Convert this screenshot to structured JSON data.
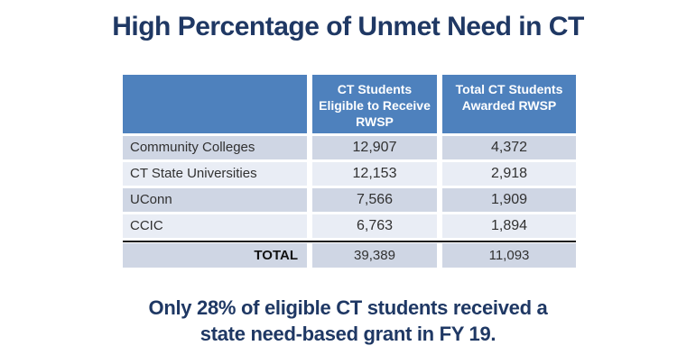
{
  "title": "High Percentage of Unmet Need in CT",
  "table": {
    "header": {
      "col1": "",
      "col2": "CT Students\nEligible to Receive\nRWSP",
      "col3": "Total CT Students\nAwarded RWSP"
    },
    "rows": [
      {
        "label": "Community Colleges",
        "eligible": "12,907",
        "awarded": "4,372"
      },
      {
        "label": "CT State Universities",
        "eligible": "12,153",
        "awarded": "2,918"
      },
      {
        "label": "UConn",
        "eligible": "7,566",
        "awarded": "1,909"
      },
      {
        "label": "CCIC",
        "eligible": "6,763",
        "awarded": "1,894"
      }
    ],
    "total": {
      "label": "TOTAL",
      "eligible": "39,389",
      "awarded": "11,093"
    }
  },
  "caption": {
    "line1": "Only 28% of eligible CT students received a",
    "line2": "state need-based grant in FY 19."
  },
  "colors": {
    "navy": "#1F3864",
    "header_blue": "#4E81BD",
    "band_dark": "#CFD6E4",
    "band_light": "#E9EDF5",
    "line": "#1B1B1B",
    "body_text": "#313131",
    "bg": "#FFFFFF"
  }
}
